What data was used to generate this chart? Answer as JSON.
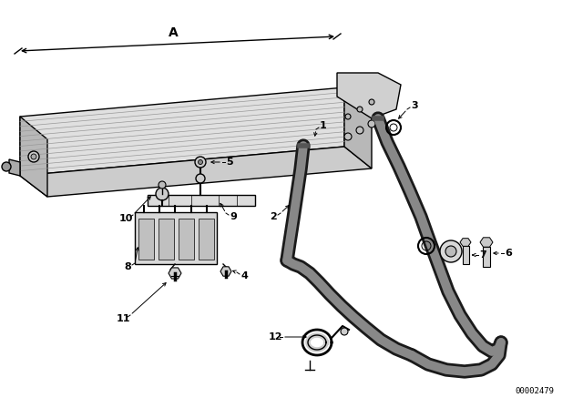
{
  "background_color": "#ffffff",
  "line_color": "#000000",
  "catalog_number": "00002479",
  "dimension_label": "A",
  "label_fontsize": 8
}
